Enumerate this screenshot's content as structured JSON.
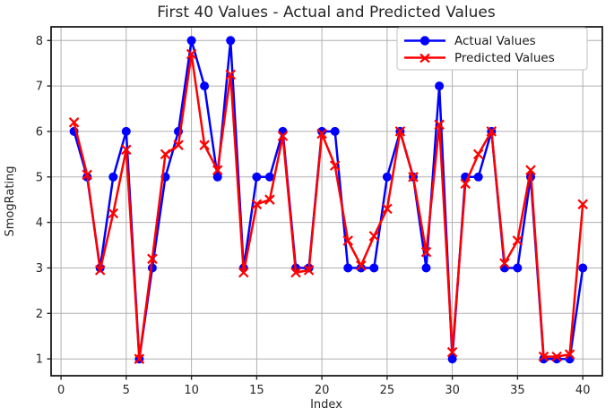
{
  "chart_data": {
    "type": "line",
    "title": "First 40 Values - Actual and Predicted Values",
    "xlabel": "Index",
    "ylabel": "SmogRating",
    "xlim": [
      -0.76,
      41.5
    ],
    "ylim": [
      0.63,
      8.3
    ],
    "xticks": [
      0,
      5,
      10,
      15,
      20,
      25,
      30,
      35,
      40
    ],
    "yticks": [
      1,
      2,
      3,
      4,
      5,
      6,
      7,
      8
    ],
    "grid": true,
    "legend_position": "upper right",
    "grid_color": "#b0b0b0",
    "x": [
      1,
      2,
      3,
      4,
      5,
      6,
      7,
      8,
      9,
      10,
      11,
      12,
      13,
      14,
      15,
      16,
      17,
      18,
      19,
      20,
      21,
      22,
      23,
      24,
      25,
      26,
      27,
      28,
      29,
      30,
      31,
      32,
      33,
      34,
      35,
      36,
      37,
      38,
      39,
      40
    ],
    "series": [
      {
        "name": "Actual Values",
        "color": "#0000ff",
        "marker": "circle",
        "values": [
          6,
          5,
          3,
          5,
          6,
          1,
          3,
          5,
          6,
          8,
          7,
          5,
          8,
          3,
          5,
          5,
          6,
          3,
          3,
          6,
          6,
          3,
          3,
          3,
          5,
          6,
          5,
          3,
          7,
          1,
          5,
          5,
          6,
          3,
          3,
          5,
          1,
          1,
          1,
          3
        ]
      },
      {
        "name": "Predicted Values",
        "color": "#ff0000",
        "marker": "x",
        "values": [
          6.2,
          5.05,
          2.95,
          4.2,
          5.6,
          1.0,
          3.2,
          5.5,
          5.7,
          7.7,
          5.7,
          5.15,
          7.25,
          2.9,
          4.4,
          4.5,
          5.9,
          2.9,
          2.95,
          5.95,
          5.25,
          3.6,
          3.05,
          3.7,
          4.3,
          6.0,
          5.0,
          3.35,
          6.15,
          1.15,
          4.85,
          5.5,
          6.0,
          3.1,
          3.6,
          5.15,
          1.05,
          1.05,
          1.1,
          4.4
        ]
      }
    ]
  }
}
